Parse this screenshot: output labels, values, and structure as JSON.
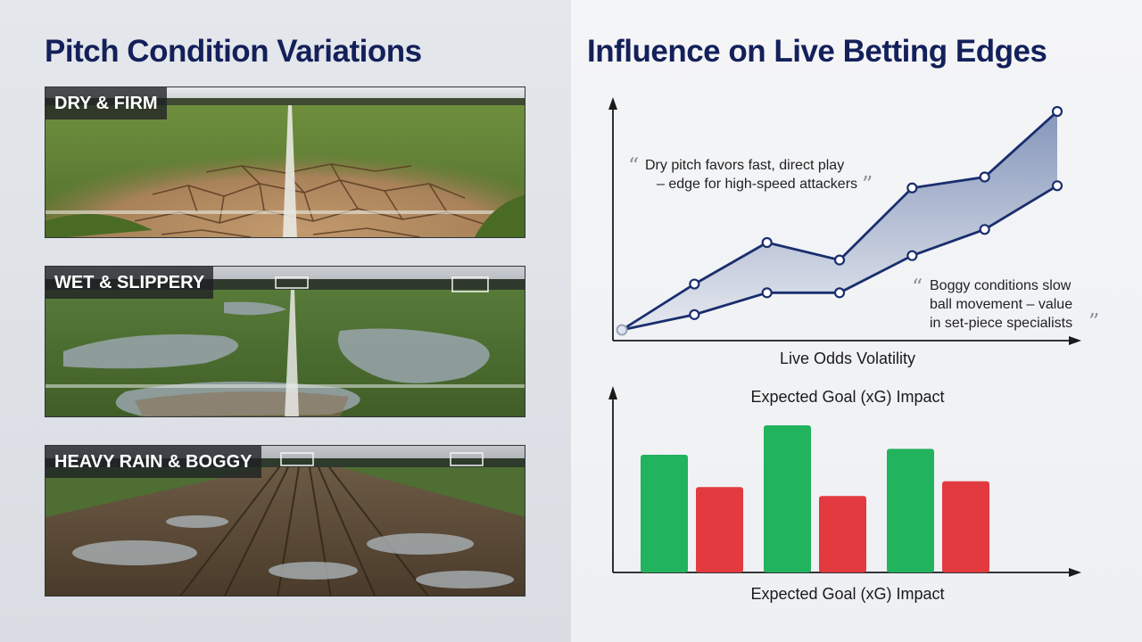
{
  "left": {
    "title": "Pitch Condition Variations",
    "cards": [
      {
        "label": "DRY & FIRM"
      },
      {
        "label": "WET & SLIPPERY"
      },
      {
        "label": "HEAVY RAIN & BOGGY"
      }
    ]
  },
  "right": {
    "title": "Influence on Live Betting Edges"
  },
  "chart_data": [
    {
      "type": "line",
      "xlabel": "Live Odds Volatility",
      "ylabel": "",
      "x": [
        0,
        1,
        2,
        3,
        4,
        5,
        6
      ],
      "ylim": [
        0,
        100
      ],
      "grid": false,
      "series": [
        {
          "values": [
            0,
            21,
            40,
            32,
            65,
            70,
            100
          ],
          "color": "#1a2e6e"
        },
        {
          "values": [
            0,
            7,
            17,
            17,
            34,
            46,
            66
          ],
          "color": "#1a2e6e"
        }
      ],
      "annotations": [
        {
          "lines": [
            "Dry pitch favors fast, direct play",
            "– edge for high-speed attackers"
          ]
        },
        {
          "lines": [
            "Boggy conditions slow",
            "ball movement – value",
            "in set-piece specialists"
          ]
        }
      ],
      "quote_open": "“",
      "quote_close": "”"
    },
    {
      "type": "bar",
      "title": "Expected Goal (xG) Impact",
      "xlabel": "Expected Goal (xG) Impact",
      "ylabel": "",
      "categories": [
        "",
        "",
        ""
      ],
      "ylim": [
        0,
        100
      ],
      "grid": false,
      "series": [
        {
          "values": [
            80,
            100,
            84
          ],
          "color": "#22b35e"
        },
        {
          "values": [
            58,
            52,
            62
          ],
          "color": "#e23a3f"
        }
      ]
    }
  ]
}
